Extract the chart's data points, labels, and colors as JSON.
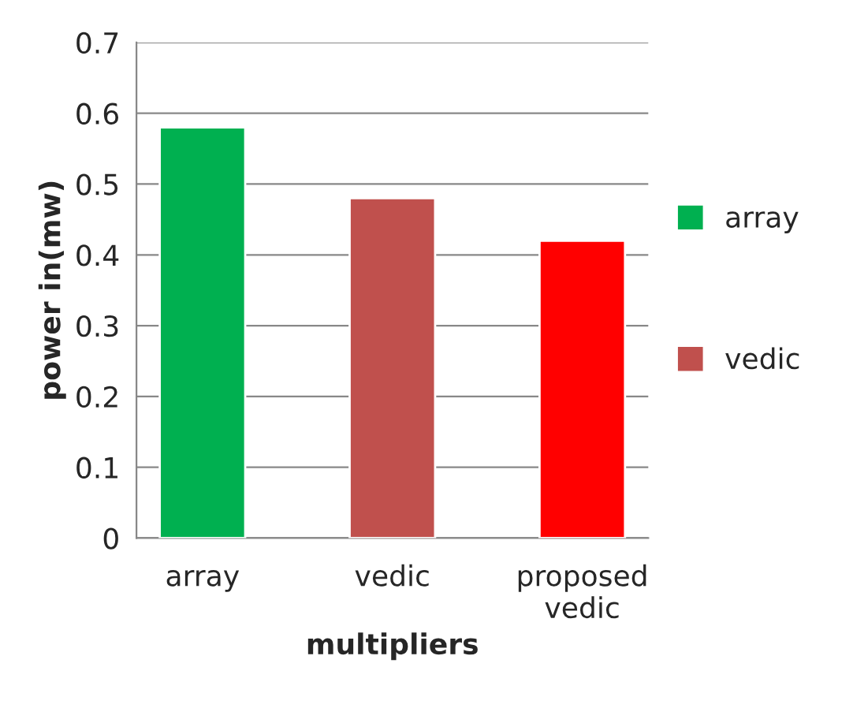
{
  "chart_data": {
    "type": "bar",
    "xlabel": "multipliers",
    "ylabel": "power in(mw)",
    "categories": [
      "array",
      "vedic",
      "proposed\nvedic"
    ],
    "series": [
      {
        "name": "array",
        "color": "#00b050",
        "values": [
          0.58,
          null,
          null
        ]
      },
      {
        "name": "vedic",
        "color": "#c0504d",
        "values": [
          null,
          0.48,
          null
        ]
      },
      {
        "color": "#ff0000",
        "values": [
          null,
          null,
          0.42
        ]
      }
    ],
    "ylim": [
      0,
      0.7
    ],
    "yticks": [
      0,
      0.1,
      0.2,
      0.3,
      0.4,
      0.5,
      0.6,
      0.7
    ],
    "grid": "y",
    "legend": "right"
  }
}
